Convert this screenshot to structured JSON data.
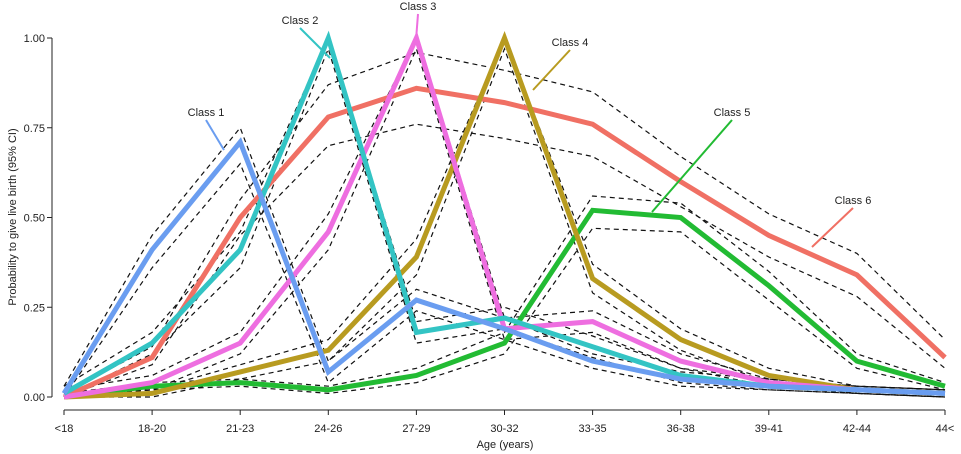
{
  "chart_data": {
    "type": "line",
    "title": "",
    "xlabel": "Age (years)",
    "ylabel": "Probability to give live birth (95% CI)",
    "categories": [
      "<18",
      "18-20",
      "21-23",
      "24-26",
      "27-29",
      "30-32",
      "33-35",
      "36-38",
      "39-41",
      "42-44",
      "44<"
    ],
    "ylim": [
      0,
      1
    ],
    "yticks": [
      "0.00",
      "0.25",
      "0.50",
      "0.75",
      "1.00"
    ],
    "grid": false,
    "series": [
      {
        "name": "Class 1",
        "color": "#6a9df0",
        "values": [
          0.01,
          0.41,
          0.71,
          0.07,
          0.27,
          0.19,
          0.1,
          0.05,
          0.03,
          0.02,
          0.01
        ],
        "ci_lower": [
          0.0,
          0.36,
          0.65,
          0.04,
          0.24,
          0.16,
          0.08,
          0.03,
          0.02,
          0.01,
          0.0
        ],
        "ci_upper": [
          0.03,
          0.45,
          0.75,
          0.1,
          0.3,
          0.22,
          0.12,
          0.07,
          0.05,
          0.03,
          0.02
        ]
      },
      {
        "name": "Class 2",
        "color": "#33c4c4",
        "values": [
          0.01,
          0.15,
          0.41,
          1.0,
          0.18,
          0.22,
          0.14,
          0.06,
          0.03,
          0.02,
          0.01
        ],
        "ci_lower": [
          0.0,
          0.12,
          0.36,
          0.97,
          0.15,
          0.19,
          0.11,
          0.04,
          0.02,
          0.01,
          0.0
        ],
        "ci_upper": [
          0.03,
          0.18,
          0.46,
          1.0,
          0.21,
          0.25,
          0.17,
          0.08,
          0.05,
          0.03,
          0.02
        ]
      },
      {
        "name": "Class 3",
        "color": "#ee6ee0",
        "values": [
          0.0,
          0.04,
          0.15,
          0.46,
          1.0,
          0.19,
          0.21,
          0.1,
          0.04,
          0.02,
          0.01
        ],
        "ci_lower": [
          0.0,
          0.02,
          0.12,
          0.41,
          0.97,
          0.16,
          0.18,
          0.08,
          0.03,
          0.01,
          0.0
        ],
        "ci_upper": [
          0.02,
          0.06,
          0.18,
          0.51,
          1.0,
          0.22,
          0.24,
          0.12,
          0.05,
          0.03,
          0.02
        ]
      },
      {
        "name": "Class 4",
        "color": "#b89b20",
        "values": [
          0.0,
          0.01,
          0.07,
          0.13,
          0.39,
          1.0,
          0.33,
          0.16,
          0.06,
          0.02,
          0.01
        ],
        "ci_lower": [
          0.0,
          0.0,
          0.05,
          0.1,
          0.34,
          0.97,
          0.29,
          0.13,
          0.04,
          0.01,
          0.0
        ],
        "ci_upper": [
          0.01,
          0.02,
          0.09,
          0.16,
          0.44,
          1.0,
          0.37,
          0.19,
          0.08,
          0.03,
          0.02
        ]
      },
      {
        "name": "Class 5",
        "color": "#22bb33",
        "values": [
          0.0,
          0.03,
          0.04,
          0.02,
          0.06,
          0.15,
          0.52,
          0.5,
          0.31,
          0.1,
          0.03
        ],
        "ci_lower": [
          0.0,
          0.02,
          0.03,
          0.01,
          0.04,
          0.12,
          0.47,
          0.46,
          0.27,
          0.08,
          0.02
        ],
        "ci_upper": [
          0.01,
          0.04,
          0.05,
          0.03,
          0.08,
          0.18,
          0.56,
          0.54,
          0.35,
          0.12,
          0.04
        ]
      },
      {
        "name": "Class 6",
        "color": "#f07064",
        "values": [
          0.0,
          0.11,
          0.5,
          0.78,
          0.86,
          0.82,
          0.76,
          0.6,
          0.45,
          0.34,
          0.11
        ],
        "ci_lower": [
          0.0,
          0.09,
          0.45,
          0.7,
          0.76,
          0.72,
          0.67,
          0.53,
          0.39,
          0.28,
          0.08
        ],
        "ci_upper": [
          0.01,
          0.14,
          0.55,
          0.87,
          0.96,
          0.91,
          0.85,
          0.67,
          0.51,
          0.4,
          0.16
        ]
      }
    ]
  }
}
